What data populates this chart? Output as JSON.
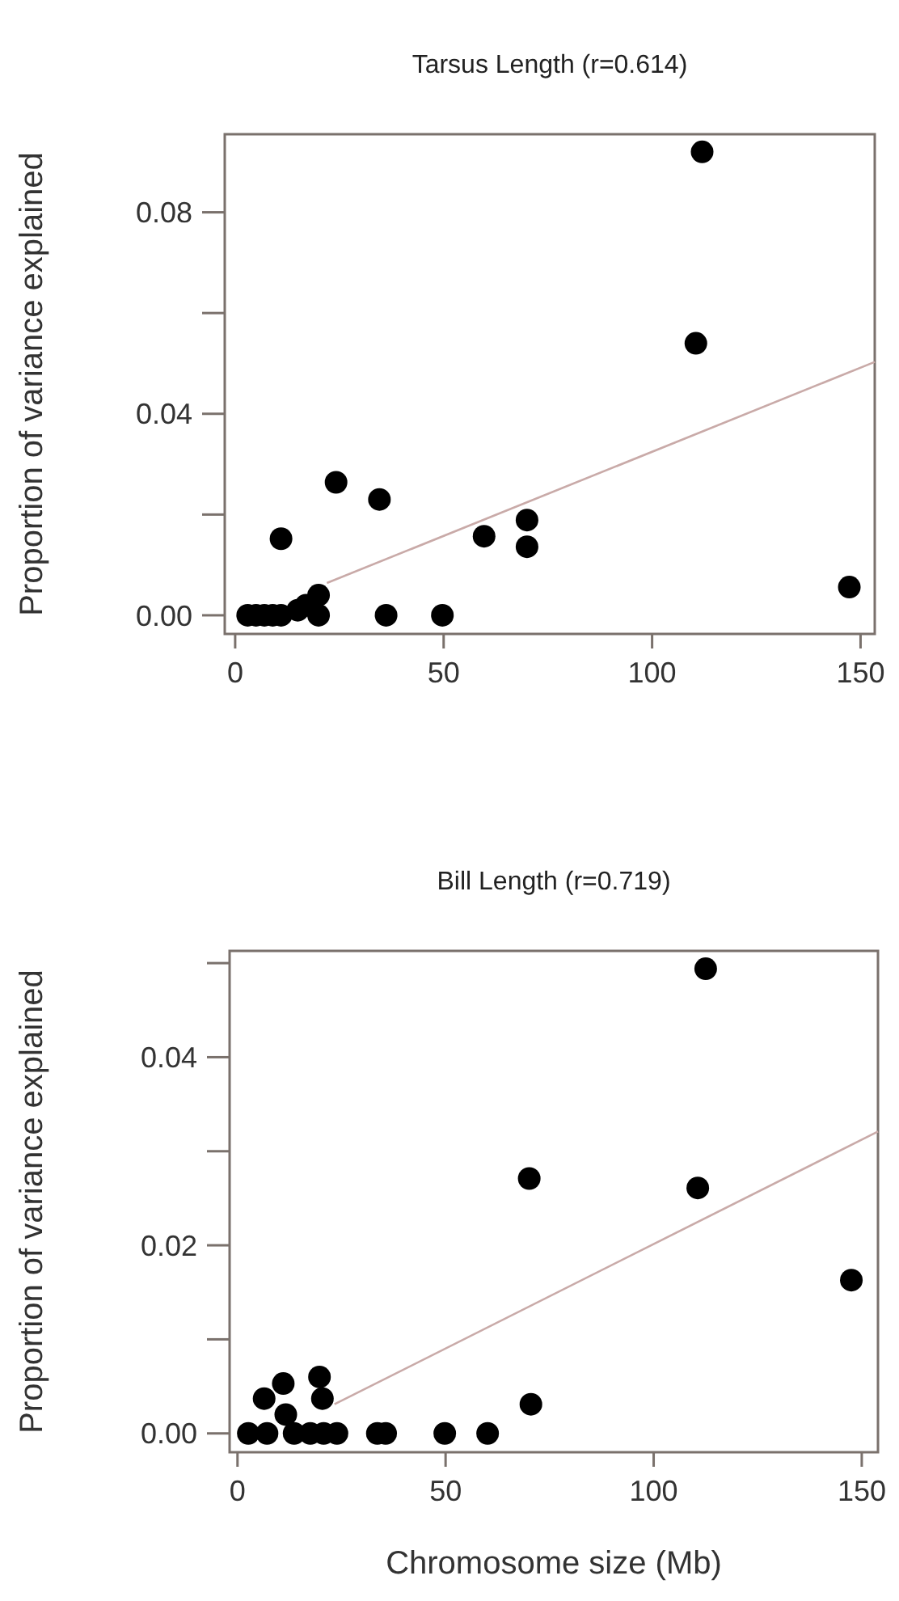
{
  "chart_data": [
    {
      "type": "scatter",
      "title": "Tarsus Length (r=0.614)",
      "ylabel": "Proportion of variance explained",
      "xlim": [
        -2.5,
        153.4
      ],
      "ylim": [
        -0.0037,
        0.0955
      ],
      "xticks": [
        0,
        50,
        100,
        150
      ],
      "yticks": [
        {
          "value": 0,
          "label": "0.00"
        },
        {
          "value": 0.02,
          "label": null
        },
        {
          "value": 0.04,
          "label": "0.04"
        },
        {
          "value": 0.06,
          "label": null
        },
        {
          "value": 0.08,
          "label": "0.08"
        }
      ],
      "series": [
        {
          "color": "#000000",
          "marker": "circle",
          "x": [
            112,
            110.5,
            24.2,
            34.6,
            11,
            59.7,
            70,
            70,
            147.3,
            36.2,
            49.7,
            3,
            5,
            7,
            9,
            11,
            15,
            17,
            20,
            20
          ],
          "values": [
            0.092,
            0.054,
            0.0264,
            0.023,
            0.0152,
            0.0157,
            0.0189,
            0.0136,
            0.0056,
            0,
            0,
            0,
            0,
            0,
            0,
            0,
            0.001,
            0.002,
            0.004,
            0
          ]
        },
        {
          "type": "line",
          "color": "#c9aaa8",
          "line_style": "solid",
          "x": [
            22,
            153.4
          ],
          "values": [
            0.0064,
            0.0503
          ]
        }
      ]
    },
    {
      "type": "scatter",
      "title": "Bill Length (r=0.719)",
      "xlabel": "Chromosome size (Mb)",
      "ylabel": "Proportion of variance explained",
      "xlim": [
        -1.9,
        153.9
      ],
      "ylim": [
        -0.002,
        0.0513
      ],
      "xticks": [
        0,
        50,
        100,
        150
      ],
      "yticks": [
        {
          "value": 0,
          "label": "0.00"
        },
        {
          "value": 0.01,
          "label": null
        },
        {
          "value": 0.02,
          "label": "0.02"
        },
        {
          "value": 0.03,
          "label": null
        },
        {
          "value": 0.04,
          "label": "0.04"
        },
        {
          "value": 0.05,
          "label": null
        }
      ],
      "series": [
        {
          "color": "#000000",
          "marker": "circle",
          "x": [
            112.5,
            70.1,
            110.6,
            147.5,
            70.5,
            60.1,
            49.8,
            35.6,
            33.6,
            2.6,
            7.1,
            13.6,
            17.5,
            20.7,
            23.9,
            6.4,
            11,
            11.6,
            19.7,
            20.4
          ],
          "values": [
            0.0494,
            0.0271,
            0.0261,
            0.0163,
            0.0031,
            0,
            0,
            0,
            0,
            0,
            0,
            0,
            0,
            0,
            0,
            0.0037,
            0.0053,
            0.002,
            0.006,
            0.0037
          ]
        },
        {
          "type": "line",
          "color": "#c9aaa8",
          "line_style": "solid",
          "x": [
            23.3,
            153.9
          ],
          "values": [
            0.0031,
            0.0321
          ]
        }
      ]
    }
  ]
}
